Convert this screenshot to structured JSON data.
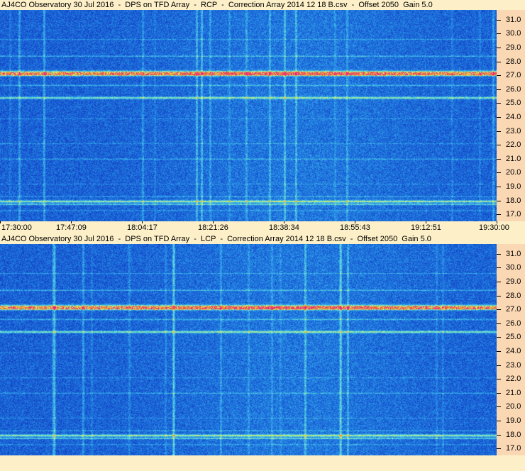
{
  "chart_data": [
    {
      "type": "heatmap",
      "title": "AJ4CO Observatory 30 Jul 2016  -  DPS on TFD Array  -  RCP  -  Correction Array 2014 12 18 B.csv  -  Offset 2050  Gain 5.0",
      "x_ticks": [
        "17:30:00",
        "17:47:09",
        "18:04:17",
        "18:21:26",
        "18:38:34",
        "18:55:43",
        "19:12:51",
        "19:30:00"
      ],
      "y_ticks": [
        "31.0",
        "30.0",
        "29.0",
        "28.0",
        "27.0",
        "26.0",
        "25.0",
        "24.0",
        "23.0",
        "22.0",
        "21.0",
        "20.0",
        "19.0",
        "18.0",
        "17.0"
      ],
      "ylim": [
        16.5,
        31.7
      ],
      "colormap": [
        "#0a1e9c",
        "#1446c8",
        "#1e78e0",
        "#3cb4ec",
        "#78e6c8",
        "#e6f050",
        "#f07828",
        "#e81e8c"
      ]
    },
    {
      "type": "heatmap",
      "title": "AJ4CO Observatory 30 Jul 2016  -  DPS on TFD Array  -  LCP  -  Correction Array 2014 12 18 B.csv  -  Offset 2050  Gain 5.0",
      "x_ticks": [],
      "y_ticks": [
        "31.0",
        "30.0",
        "29.0",
        "28.0",
        "27.0",
        "26.0",
        "25.0",
        "24.0",
        "23.0",
        "22.0",
        "21.0",
        "20.0",
        "19.0",
        "18.0",
        "17.0"
      ],
      "ylim": [
        16.5,
        31.7
      ],
      "colormap": [
        "#0a1e9c",
        "#1446c8",
        "#1e78e0",
        "#3cb4ec",
        "#78e6c8",
        "#e6f050",
        "#f07828",
        "#e81e8c"
      ]
    }
  ]
}
